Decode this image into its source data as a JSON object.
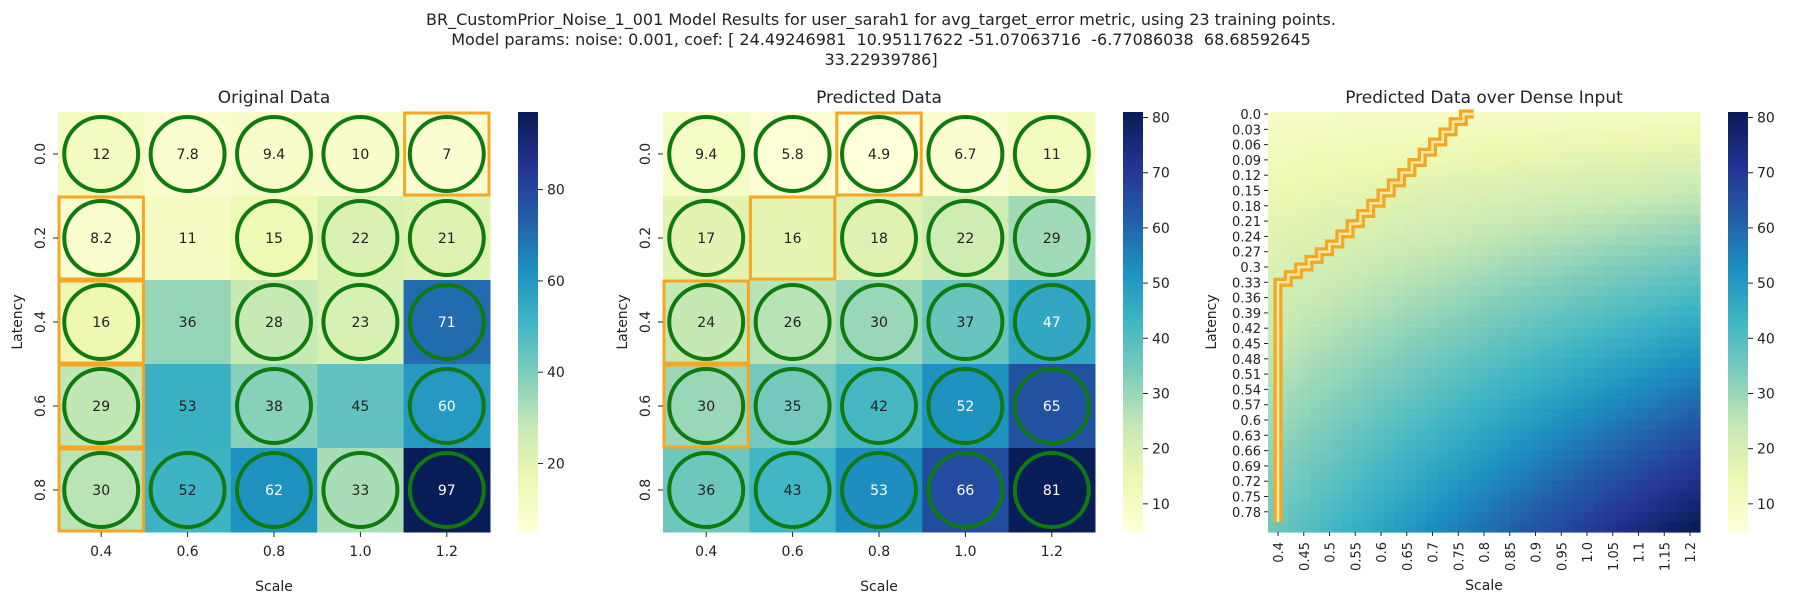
{
  "suptitle": {
    "line1": "BR_CustomPrior_Noise_1_001 Model Results for user_sarah1 for avg_target_error metric, using 23 training points.",
    "line2": "Model params: noise: 0.001, coef: [ 24.49246981  10.95117622 -51.07063716  -6.77086038  68.68592645",
    "line3": "33.22939786]"
  },
  "colors": {
    "highlight_circle": "#0f7a0f",
    "highlight_box": "#f5a623",
    "colormap": [
      "#ffffd9",
      "#edf8b1",
      "#c7e9b4",
      "#7fcdbb",
      "#41b6c4",
      "#1d91c0",
      "#225ea8",
      "#253494",
      "#081d58"
    ]
  },
  "chart_data": [
    {
      "type": "heatmap",
      "title": "Original Data",
      "xlabel": "Scale",
      "ylabel": "Latency",
      "x": [
        "0.4",
        "0.6",
        "0.8",
        "1.0",
        "1.2"
      ],
      "y": [
        "0.0",
        "0.2",
        "0.4",
        "0.6",
        "0.8"
      ],
      "values": [
        [
          12,
          7.8,
          9.4,
          10,
          7
        ],
        [
          8.2,
          11,
          15,
          22,
          21
        ],
        [
          16,
          36,
          28,
          23,
          71
        ],
        [
          29,
          53,
          38,
          45,
          60
        ],
        [
          30,
          52,
          62,
          33,
          97
        ]
      ],
      "circled": [
        [
          1,
          1,
          1,
          1,
          1
        ],
        [
          1,
          0,
          1,
          1,
          1
        ],
        [
          1,
          0,
          1,
          1,
          1
        ],
        [
          1,
          0,
          1,
          0,
          1
        ],
        [
          1,
          1,
          1,
          1,
          1
        ]
      ],
      "boxed": [
        [
          0,
          4
        ],
        [
          1,
          0
        ],
        [
          2,
          0
        ],
        [
          3,
          0
        ],
        [
          4,
          0
        ]
      ],
      "colorbar": {
        "min": 5,
        "max": 97,
        "ticks": [
          20,
          40,
          60,
          80
        ]
      }
    },
    {
      "type": "heatmap",
      "title": "Predicted Data",
      "xlabel": "Scale",
      "ylabel": "Latency",
      "x": [
        "0.4",
        "0.6",
        "0.8",
        "1.0",
        "1.2"
      ],
      "y": [
        "0.0",
        "0.2",
        "0.4",
        "0.6",
        "0.8"
      ],
      "values": [
        [
          9.4,
          5.8,
          4.9,
          6.7,
          11
        ],
        [
          17,
          16,
          18,
          22,
          29
        ],
        [
          24,
          26,
          30,
          37,
          47
        ],
        [
          30,
          35,
          42,
          52,
          65
        ],
        [
          36,
          43,
          53,
          66,
          81
        ]
      ],
      "circled": [
        [
          1,
          1,
          1,
          1,
          1
        ],
        [
          1,
          0,
          1,
          1,
          1
        ],
        [
          1,
          1,
          1,
          1,
          1
        ],
        [
          1,
          1,
          1,
          1,
          1
        ],
        [
          1,
          1,
          1,
          1,
          1
        ]
      ],
      "boxed": [
        [
          0,
          2
        ],
        [
          1,
          1
        ],
        [
          2,
          0
        ],
        [
          3,
          0
        ]
      ],
      "colorbar": {
        "min": 4.9,
        "max": 81,
        "ticks": [
          10,
          20,
          30,
          40,
          50,
          60,
          70,
          80
        ]
      }
    },
    {
      "type": "heatmap",
      "title": "Predicted Data over Dense Input",
      "xlabel": "Scale",
      "ylabel": "Latency",
      "x": [
        "0.4",
        "0.45",
        "0.5",
        "0.55",
        "0.6",
        "0.65",
        "0.7",
        "0.75",
        "0.8",
        "0.85",
        "0.9",
        "0.95",
        "1.0",
        "1.05",
        "1.1",
        "1.15",
        "1.2"
      ],
      "y": [
        "0.0",
        "0.03",
        "0.06",
        "0.09",
        "0.12",
        "0.15",
        "0.18",
        "0.21",
        "0.24",
        "0.27",
        "0.3",
        "0.33",
        "0.36",
        "0.39",
        "0.42",
        "0.45",
        "0.48",
        "0.51",
        "0.54",
        "0.57",
        "0.6",
        "0.63",
        "0.66",
        "0.69",
        "0.72",
        "0.75",
        "0.78"
      ],
      "x_range": [
        0.4,
        1.2
      ],
      "y_range": [
        0.0,
        0.8
      ],
      "grid": {
        "cols": 41,
        "rows": 41
      },
      "corner_values": {
        "top_left": 9.4,
        "top_right": 11,
        "bottom_left": 36,
        "bottom_right": 81
      },
      "boxed_path": [
        [
          0.4,
          0.8
        ],
        [
          0.4,
          0.345
        ],
        [
          0.42,
          0.33
        ],
        [
          0.44,
          0.315
        ],
        [
          0.46,
          0.3
        ],
        [
          0.48,
          0.285
        ],
        [
          0.5,
          0.27
        ],
        [
          0.52,
          0.255
        ],
        [
          0.54,
          0.235
        ],
        [
          0.56,
          0.215
        ],
        [
          0.58,
          0.195
        ],
        [
          0.6,
          0.175
        ],
        [
          0.62,
          0.155
        ],
        [
          0.64,
          0.135
        ],
        [
          0.66,
          0.115
        ],
        [
          0.68,
          0.095
        ],
        [
          0.7,
          0.075
        ],
        [
          0.72,
          0.055
        ],
        [
          0.74,
          0.035
        ],
        [
          0.76,
          0.015
        ],
        [
          0.78,
          0.0
        ]
      ],
      "colorbar": {
        "min": 4.9,
        "max": 81,
        "ticks": [
          10,
          20,
          30,
          40,
          50,
          60,
          70,
          80
        ]
      }
    }
  ]
}
